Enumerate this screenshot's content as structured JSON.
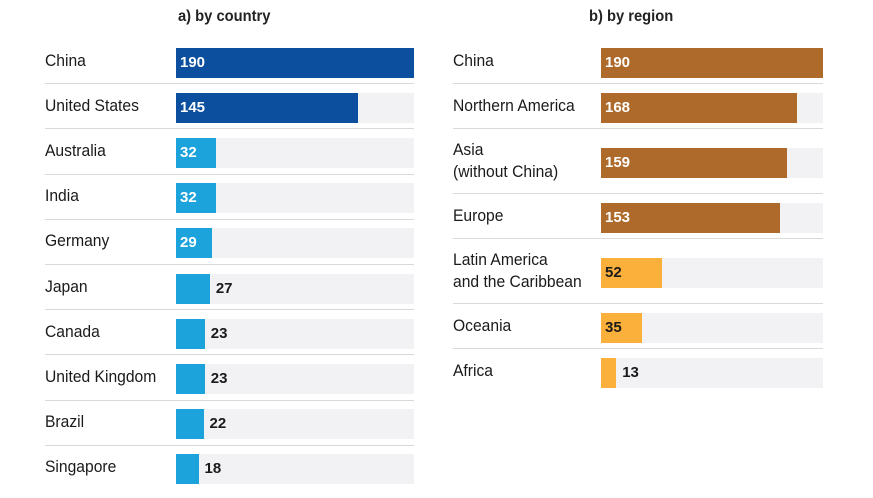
{
  "chart_data": [
    {
      "type": "bar",
      "orientation": "horizontal",
      "title": "a) by country",
      "categories": [
        "China",
        "United States",
        "Australia",
        "India",
        "Germany",
        "Japan",
        "Canada",
        "United Kingdom",
        "Brazil",
        "Singapore"
      ],
      "values": [
        190,
        145,
        32,
        32,
        29,
        27,
        23,
        23,
        22,
        18
      ],
      "xlim": [
        0,
        190
      ],
      "colors": {
        "highlight": "#0b4f9e",
        "default": "#1ca3dc",
        "track": "#f2f2f4"
      },
      "highlight_count": 2
    },
    {
      "type": "bar",
      "orientation": "horizontal",
      "title": "b) by region",
      "categories": [
        "China",
        "Northern America",
        "Asia\n(without China)",
        "Europe",
        "Latin America\nand the Caribbean",
        "Oceania",
        "Africa"
      ],
      "values": [
        190,
        168,
        159,
        153,
        52,
        35,
        13
      ],
      "xlim": [
        0,
        190
      ],
      "colors": {
        "highlight": "#ad6a2a",
        "default": "#fbb03b",
        "track": "#f2f2f4"
      },
      "highlight_count": 4
    }
  ]
}
